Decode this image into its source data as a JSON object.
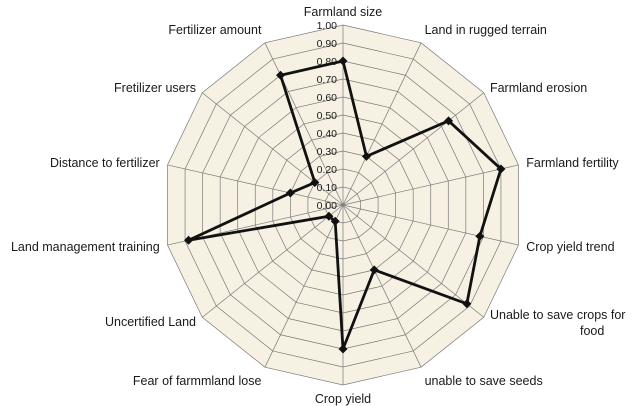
{
  "chart_data": {
    "type": "radar",
    "categories": [
      "Farmland size",
      "Land in rugged terrain",
      "Farmland erosion",
      "Farmland fertility",
      "Crop yield trend",
      "Unable to save crops for food",
      "unable to save seeds",
      "Crop yield",
      "Fear of farmmland lose",
      "Uncertified Land",
      "Land management training",
      "Distance to fertilizer",
      "Fretilizer users",
      "Fertilizer amount"
    ],
    "values": [
      0.8,
      0.3,
      0.75,
      0.9,
      0.78,
      0.88,
      0.4,
      0.8,
      0.1,
      0.1,
      0.88,
      0.3,
      0.2,
      0.8
    ],
    "rlim": [
      0,
      1
    ],
    "ticks": [
      "0.00",
      "0.10",
      "0.20",
      "0.30",
      "0.40",
      "0.50",
      "0.60",
      "0.70",
      "0.80",
      "0.90",
      "1.00"
    ],
    "grid": true,
    "colors": {
      "background": "#f6f1e3",
      "grid": "#7a7a7a",
      "series": "#111111"
    }
  }
}
